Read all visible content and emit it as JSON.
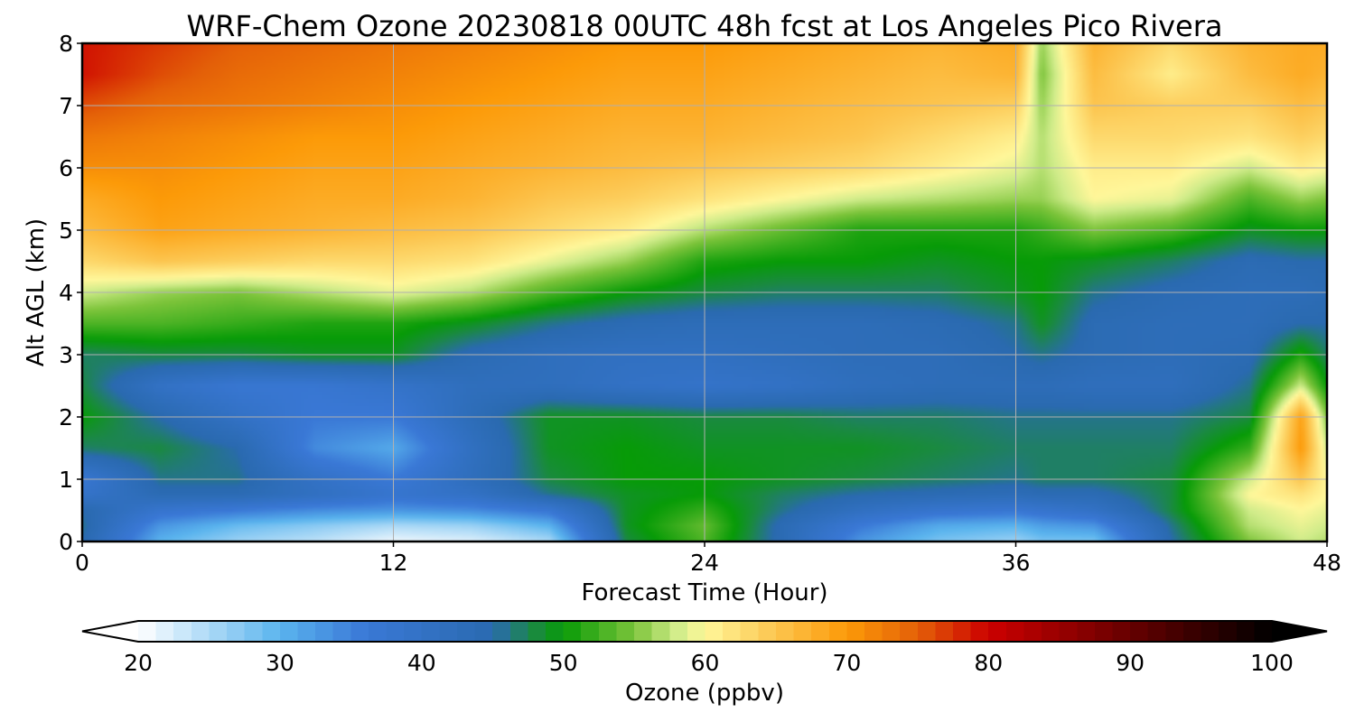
{
  "chart_data": {
    "type": "heatmap",
    "title": "WRF-Chem Ozone  20230818 00UTC 48h fcst at Los Angeles Pico Rivera",
    "xlabel": "Forecast Time (Hour)",
    "ylabel": "Alt AGL (km)",
    "xlim": [
      0,
      48
    ],
    "ylim": [
      0,
      8
    ],
    "x_ticks": [
      0,
      12,
      24,
      36,
      48
    ],
    "y_ticks": [
      0,
      1,
      2,
      3,
      4,
      5,
      6,
      7,
      8
    ],
    "grid": true,
    "x": [
      0,
      3,
      6,
      9,
      12,
      15,
      18,
      21,
      24,
      27,
      30,
      33,
      36,
      37,
      39,
      42,
      45,
      47,
      48
    ],
    "y": [
      0,
      0.25,
      0.5,
      0.75,
      1,
      1.5,
      2,
      2.5,
      3,
      3.5,
      4,
      4.5,
      5,
      5.5,
      6,
      6.5,
      7,
      7.5,
      8
    ],
    "z": [
      [
        45,
        30,
        26,
        24,
        21,
        22,
        25,
        48,
        53,
        44,
        33,
        28,
        26,
        28,
        28,
        45,
        55,
        58,
        57
      ],
      [
        46,
        33,
        29,
        27,
        25,
        26,
        30,
        49,
        54,
        44,
        36,
        31,
        30,
        32,
        33,
        46,
        57,
        59,
        58
      ],
      [
        45,
        38,
        36,
        34,
        33,
        34,
        37,
        49,
        52,
        46,
        41,
        38,
        37,
        38,
        40,
        48,
        58,
        60,
        59
      ],
      [
        39,
        44,
        44,
        41,
        38,
        40,
        46,
        49,
        50,
        47,
        45,
        44,
        43,
        44,
        44,
        48,
        60,
        62,
        60
      ],
      [
        37,
        46,
        46,
        40,
        36,
        42,
        48,
        50,
        50,
        49,
        48,
        47,
        46,
        47,
        47,
        48,
        58,
        65,
        60
      ],
      [
        47,
        48,
        45,
        34,
        31,
        41,
        49,
        50,
        49,
        49,
        49,
        48,
        47,
        47,
        47,
        47,
        52,
        70,
        58
      ],
      [
        50,
        45,
        40,
        36,
        36,
        43,
        49,
        49,
        48,
        48,
        47,
        47,
        46,
        46,
        46,
        46,
        48,
        69,
        55
      ],
      [
        48,
        40,
        37,
        37,
        39,
        42,
        42,
        40,
        39,
        40,
        42,
        43,
        43,
        43,
        42,
        42,
        46,
        58,
        50
      ],
      [
        47,
        48,
        48,
        49,
        49,
        44,
        42,
        41,
        41,
        42,
        43,
        43,
        45,
        46,
        44,
        43,
        44,
        51,
        47
      ],
      [
        53,
        53,
        52,
        51,
        51,
        49,
        46,
        44,
        43,
        43,
        43,
        44,
        46,
        49,
        44,
        43,
        43,
        45,
        45
      ],
      [
        58,
        56,
        55,
        57,
        59,
        57,
        53,
        50,
        48,
        47,
        47,
        47,
        49,
        50,
        46,
        44,
        43,
        43,
        44
      ],
      [
        63,
        65,
        64,
        63,
        63,
        62,
        59,
        56,
        51,
        50,
        50,
        49,
        50,
        50,
        49,
        47,
        44,
        45,
        45
      ],
      [
        66,
        69,
        68,
        67,
        66,
        65,
        63,
        61,
        57,
        54,
        51,
        51,
        51,
        52,
        55,
        53,
        49,
        50,
        50
      ],
      [
        68,
        70,
        69,
        68,
        68,
        67,
        65,
        64,
        62,
        60,
        58,
        57,
        56,
        56,
        60,
        59,
        53,
        56,
        55
      ],
      [
        71,
        71,
        70,
        69,
        69,
        68,
        67,
        66,
        65,
        64,
        63,
        61,
        59,
        57,
        61,
        61,
        58,
        61,
        60
      ],
      [
        73,
        72,
        71,
        70,
        70,
        69,
        68,
        67,
        67,
        66,
        65,
        63,
        61,
        57,
        63,
        63,
        62,
        64,
        63
      ],
      [
        76,
        74,
        73,
        72,
        71,
        70,
        69,
        68,
        68,
        67,
        66,
        65,
        64,
        56,
        65,
        64,
        64,
        66,
        65
      ],
      [
        79,
        76,
        74,
        73,
        72,
        71,
        70,
        69,
        69,
        68,
        67,
        66,
        67,
        55,
        66,
        61,
        66,
        68,
        67
      ],
      [
        79,
        77,
        75,
        74,
        73,
        72,
        71,
        70,
        70,
        69,
        68,
        67,
        68,
        56,
        67,
        63,
        67,
        68,
        68
      ]
    ],
    "colorbar": {
      "label": "Ozone  (ppbv)",
      "vmin": 20,
      "vmax": 100,
      "ticks": [
        20,
        30,
        40,
        50,
        60,
        70,
        80,
        90,
        100
      ],
      "extend": "both"
    },
    "colors": {
      "stops": [
        [
          20,
          "#ffffff"
        ],
        [
          30,
          "#5ab4ee"
        ],
        [
          36,
          "#3a78d6"
        ],
        [
          45,
          "#2a6ab0"
        ],
        [
          48,
          "#1a8a40"
        ],
        [
          50,
          "#079b07"
        ],
        [
          55,
          "#7cc43a"
        ],
        [
          58,
          "#d0ec8a"
        ],
        [
          60,
          "#fff79a"
        ],
        [
          65,
          "#fcc54f"
        ],
        [
          70,
          "#fc9a08"
        ],
        [
          75,
          "#e46008"
        ],
        [
          80,
          "#cc0000"
        ],
        [
          90,
          "#660000"
        ],
        [
          100,
          "#000000"
        ]
      ],
      "axes": "#000000",
      "grid": "#b0b0b0"
    }
  }
}
